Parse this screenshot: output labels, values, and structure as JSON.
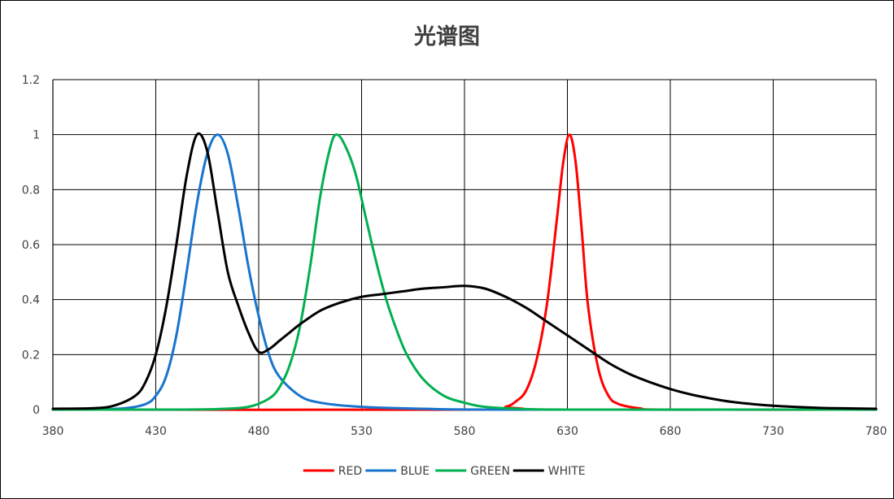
{
  "chart_data": {
    "type": "line",
    "title": "光谱图",
    "xlabel": "",
    "ylabel": "",
    "xlim": [
      380,
      780
    ],
    "ylim": [
      0,
      1.2
    ],
    "x_ticks": [
      380,
      430,
      480,
      530,
      580,
      630,
      680,
      730,
      780
    ],
    "y_ticks": [
      0,
      0.2,
      0.4,
      0.6,
      0.8,
      1,
      1.2
    ],
    "grid": true,
    "legend_position": "bottom",
    "series": [
      {
        "name": "RED",
        "color": "#ff0000",
        "points": [
          [
            380,
            0
          ],
          [
            590,
            0
          ],
          [
            600,
            0.01
          ],
          [
            605,
            0.03
          ],
          [
            610,
            0.07
          ],
          [
            615,
            0.18
          ],
          [
            620,
            0.38
          ],
          [
            625,
            0.7
          ],
          [
            628,
            0.9
          ],
          [
            631,
            1.0
          ],
          [
            634,
            0.9
          ],
          [
            637,
            0.65
          ],
          [
            640,
            0.38
          ],
          [
            645,
            0.15
          ],
          [
            650,
            0.05
          ],
          [
            655,
            0.02
          ],
          [
            665,
            0.005
          ],
          [
            680,
            0
          ],
          [
            780,
            0
          ]
        ]
      },
      {
        "name": "BLUE",
        "color": "#1874cd",
        "points": [
          [
            380,
            0
          ],
          [
            400,
            0.001
          ],
          [
            415,
            0.005
          ],
          [
            425,
            0.02
          ],
          [
            430,
            0.05
          ],
          [
            435,
            0.12
          ],
          [
            440,
            0.27
          ],
          [
            445,
            0.5
          ],
          [
            450,
            0.75
          ],
          [
            455,
            0.93
          ],
          [
            460,
            1.0
          ],
          [
            465,
            0.93
          ],
          [
            470,
            0.74
          ],
          [
            475,
            0.52
          ],
          [
            480,
            0.34
          ],
          [
            485,
            0.2
          ],
          [
            490,
            0.12
          ],
          [
            500,
            0.05
          ],
          [
            510,
            0.025
          ],
          [
            530,
            0.01
          ],
          [
            560,
            0.003
          ],
          [
            600,
            0
          ],
          [
            780,
            0
          ]
        ]
      },
      {
        "name": "GREEN",
        "color": "#00b050",
        "points": [
          [
            380,
            0
          ],
          [
            440,
            0
          ],
          [
            460,
            0.002
          ],
          [
            475,
            0.01
          ],
          [
            485,
            0.04
          ],
          [
            490,
            0.08
          ],
          [
            495,
            0.16
          ],
          [
            500,
            0.3
          ],
          [
            505,
            0.52
          ],
          [
            510,
            0.78
          ],
          [
            515,
            0.96
          ],
          [
            518,
            1.0
          ],
          [
            522,
            0.96
          ],
          [
            527,
            0.86
          ],
          [
            532,
            0.7
          ],
          [
            537,
            0.54
          ],
          [
            542,
            0.4
          ],
          [
            547,
            0.29
          ],
          [
            552,
            0.2
          ],
          [
            560,
            0.11
          ],
          [
            570,
            0.05
          ],
          [
            580,
            0.025
          ],
          [
            590,
            0.01
          ],
          [
            610,
            0.002
          ],
          [
            640,
            0
          ],
          [
            780,
            0
          ]
        ]
      },
      {
        "name": "WHITE",
        "color": "#000000",
        "points": [
          [
            380,
            0.003
          ],
          [
            400,
            0.005
          ],
          [
            410,
            0.015
          ],
          [
            420,
            0.05
          ],
          [
            425,
            0.1
          ],
          [
            430,
            0.2
          ],
          [
            435,
            0.37
          ],
          [
            440,
            0.6
          ],
          [
            445,
            0.85
          ],
          [
            450,
            1.0
          ],
          [
            455,
            0.94
          ],
          [
            460,
            0.72
          ],
          [
            465,
            0.5
          ],
          [
            470,
            0.38
          ],
          [
            475,
            0.28
          ],
          [
            480,
            0.21
          ],
          [
            485,
            0.22
          ],
          [
            490,
            0.25
          ],
          [
            495,
            0.28
          ],
          [
            500,
            0.31
          ],
          [
            510,
            0.36
          ],
          [
            520,
            0.39
          ],
          [
            530,
            0.41
          ],
          [
            540,
            0.42
          ],
          [
            550,
            0.43
          ],
          [
            560,
            0.44
          ],
          [
            570,
            0.445
          ],
          [
            580,
            0.45
          ],
          [
            590,
            0.44
          ],
          [
            600,
            0.41
          ],
          [
            610,
            0.37
          ],
          [
            620,
            0.32
          ],
          [
            630,
            0.27
          ],
          [
            640,
            0.22
          ],
          [
            650,
            0.17
          ],
          [
            660,
            0.13
          ],
          [
            670,
            0.1
          ],
          [
            680,
            0.075
          ],
          [
            690,
            0.055
          ],
          [
            700,
            0.04
          ],
          [
            710,
            0.028
          ],
          [
            720,
            0.02
          ],
          [
            730,
            0.014
          ],
          [
            740,
            0.01
          ],
          [
            750,
            0.007
          ],
          [
            760,
            0.005
          ],
          [
            780,
            0.003
          ]
        ]
      }
    ]
  }
}
